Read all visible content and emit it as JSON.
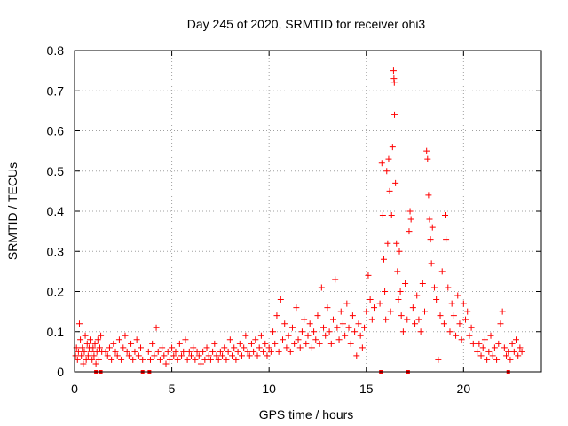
{
  "chart_data": {
    "type": "scatter",
    "title": "Day 245 of 2020, SRMTID for receiver ohi3",
    "xlabel": "GPS time / hours",
    "ylabel": "SRMTID / TECUs",
    "xlim": [
      0,
      24
    ],
    "ylim": [
      0,
      0.8
    ],
    "x_ticks": [
      0,
      5,
      10,
      15,
      20
    ],
    "x_tick_labels": [
      "0",
      "5",
      "10",
      "15",
      "20"
    ],
    "y_ticks": [
      0,
      0.1,
      0.2,
      0.3,
      0.4,
      0.5,
      0.6,
      0.7,
      0.8
    ],
    "y_tick_labels": [
      "0",
      "0.1",
      "0.2",
      "0.3",
      "0.4",
      "0.5",
      "0.6",
      "0.7",
      "0.8"
    ],
    "grid": true,
    "marker": "plus",
    "color": "#ff0000",
    "series": [
      {
        "name": "SRMTID",
        "points": [
          [
            0.05,
            0.04
          ],
          [
            0.1,
            0.06
          ],
          [
            0.15,
            0.03
          ],
          [
            0.2,
            0.05
          ],
          [
            0.25,
            0.12
          ],
          [
            0.3,
            0.08
          ],
          [
            0.35,
            0.04
          ],
          [
            0.4,
            0.06
          ],
          [
            0.45,
            0.02
          ],
          [
            0.5,
            0.05
          ],
          [
            0.55,
            0.09
          ],
          [
            0.6,
            0.03
          ],
          [
            0.65,
            0.07
          ],
          [
            0.7,
            0.04
          ],
          [
            0.75,
            0.06
          ],
          [
            0.8,
            0.08
          ],
          [
            0.85,
            0.05
          ],
          [
            0.9,
            0.03
          ],
          [
            0.95,
            0.06
          ],
          [
            1.0,
            0.04
          ],
          [
            1.05,
            0.07
          ],
          [
            1.1,
            0.02
          ],
          [
            1.15,
            0.05
          ],
          [
            1.2,
            0.08
          ],
          [
            1.25,
            0.03
          ],
          [
            1.3,
            0.06
          ],
          [
            1.35,
            0.09
          ],
          [
            1.4,
            0.05
          ],
          [
            1.6,
            0.05
          ],
          [
            1.7,
            0.04
          ],
          [
            1.8,
            0.06
          ],
          [
            1.9,
            0.03
          ],
          [
            2.0,
            0.07
          ],
          [
            2.1,
            0.05
          ],
          [
            2.2,
            0.04
          ],
          [
            2.3,
            0.08
          ],
          [
            2.4,
            0.03
          ],
          [
            2.5,
            0.06
          ],
          [
            2.6,
            0.09
          ],
          [
            2.7,
            0.05
          ],
          [
            2.8,
            0.04
          ],
          [
            2.9,
            0.07
          ],
          [
            3.0,
            0.03
          ],
          [
            3.1,
            0.05
          ],
          [
            3.2,
            0.08
          ],
          [
            3.3,
            0.04
          ],
          [
            3.4,
            0.06
          ],
          [
            3.5,
            0.03
          ],
          [
            3.8,
            0.05
          ],
          [
            3.9,
            0.03
          ],
          [
            4.0,
            0.07
          ],
          [
            4.1,
            0.04
          ],
          [
            4.2,
            0.11
          ],
          [
            4.3,
            0.05
          ],
          [
            4.4,
            0.03
          ],
          [
            4.5,
            0.06
          ],
          [
            4.6,
            0.04
          ],
          [
            4.7,
            0.02
          ],
          [
            4.8,
            0.05
          ],
          [
            4.9,
            0.03
          ],
          [
            5.0,
            0.06
          ],
          [
            5.1,
            0.04
          ],
          [
            5.2,
            0.05
          ],
          [
            5.3,
            0.03
          ],
          [
            5.4,
            0.07
          ],
          [
            5.5,
            0.04
          ],
          [
            5.6,
            0.05
          ],
          [
            5.7,
            0.08
          ],
          [
            5.8,
            0.03
          ],
          [
            5.9,
            0.05
          ],
          [
            6.0,
            0.04
          ],
          [
            6.1,
            0.06
          ],
          [
            6.2,
            0.03
          ],
          [
            6.3,
            0.05
          ],
          [
            6.4,
            0.04
          ],
          [
            6.5,
            0.02
          ],
          [
            6.6,
            0.05
          ],
          [
            6.7,
            0.03
          ],
          [
            6.8,
            0.06
          ],
          [
            6.9,
            0.04
          ],
          [
            7.0,
            0.03
          ],
          [
            7.1,
            0.05
          ],
          [
            7.2,
            0.07
          ],
          [
            7.3,
            0.04
          ],
          [
            7.4,
            0.03
          ],
          [
            7.5,
            0.05
          ],
          [
            7.6,
            0.04
          ],
          [
            7.7,
            0.06
          ],
          [
            7.8,
            0.03
          ],
          [
            7.9,
            0.05
          ],
          [
            8.0,
            0.08
          ],
          [
            8.1,
            0.04
          ],
          [
            8.2,
            0.06
          ],
          [
            8.3,
            0.03
          ],
          [
            8.4,
            0.05
          ],
          [
            8.5,
            0.07
          ],
          [
            8.6,
            0.04
          ],
          [
            8.7,
            0.06
          ],
          [
            8.8,
            0.09
          ],
          [
            8.9,
            0.05
          ],
          [
            9.0,
            0.04
          ],
          [
            9.1,
            0.07
          ],
          [
            9.2,
            0.05
          ],
          [
            9.3,
            0.08
          ],
          [
            9.4,
            0.04
          ],
          [
            9.5,
            0.06
          ],
          [
            9.6,
            0.09
          ],
          [
            9.7,
            0.05
          ],
          [
            9.8,
            0.07
          ],
          [
            9.9,
            0.04
          ],
          [
            10.0,
            0.06
          ],
          [
            10.1,
            0.05
          ],
          [
            10.2,
            0.1
          ],
          [
            10.3,
            0.07
          ],
          [
            10.4,
            0.14
          ],
          [
            10.5,
            0.05
          ],
          [
            10.6,
            0.18
          ],
          [
            10.7,
            0.08
          ],
          [
            10.8,
            0.12
          ],
          [
            10.9,
            0.06
          ],
          [
            11.0,
            0.09
          ],
          [
            11.1,
            0.05
          ],
          [
            11.2,
            0.11
          ],
          [
            11.3,
            0.07
          ],
          [
            11.4,
            0.16
          ],
          [
            11.5,
            0.08
          ],
          [
            11.6,
            0.06
          ],
          [
            11.7,
            0.1
          ],
          [
            11.8,
            0.13
          ],
          [
            11.9,
            0.07
          ],
          [
            12.0,
            0.09
          ],
          [
            12.1,
            0.12
          ],
          [
            12.2,
            0.06
          ],
          [
            12.3,
            0.1
          ],
          [
            12.4,
            0.08
          ],
          [
            12.5,
            0.14
          ],
          [
            12.6,
            0.07
          ],
          [
            12.7,
            0.21
          ],
          [
            12.8,
            0.11
          ],
          [
            12.9,
            0.09
          ],
          [
            13.0,
            0.16
          ],
          [
            13.1,
            0.1
          ],
          [
            13.2,
            0.07
          ],
          [
            13.3,
            0.13
          ],
          [
            13.4,
            0.23
          ],
          [
            13.5,
            0.11
          ],
          [
            13.6,
            0.08
          ],
          [
            13.7,
            0.15
          ],
          [
            13.8,
            0.12
          ],
          [
            13.9,
            0.09
          ],
          [
            14.0,
            0.17
          ],
          [
            14.1,
            0.11
          ],
          [
            14.2,
            0.07
          ],
          [
            14.3,
            0.14
          ],
          [
            14.4,
            0.1
          ],
          [
            14.5,
            0.04
          ],
          [
            14.6,
            0.12
          ],
          [
            14.7,
            0.09
          ],
          [
            14.8,
            0.06
          ],
          [
            14.9,
            0.11
          ],
          [
            15.0,
            0.15
          ],
          [
            15.1,
            0.24
          ],
          [
            15.2,
            0.18
          ],
          [
            15.3,
            0.13
          ],
          [
            15.4,
            0.16
          ],
          [
            15.7,
            0.17
          ],
          [
            15.8,
            0.52
          ],
          [
            15.85,
            0.39
          ],
          [
            15.9,
            0.28
          ],
          [
            15.95,
            0.2
          ],
          [
            16.0,
            0.13
          ],
          [
            16.05,
            0.5
          ],
          [
            16.1,
            0.32
          ],
          [
            16.15,
            0.53
          ],
          [
            16.2,
            0.45
          ],
          [
            16.25,
            0.15
          ],
          [
            16.3,
            0.39
          ],
          [
            16.35,
            0.56
          ],
          [
            16.4,
            0.75
          ],
          [
            16.42,
            0.73
          ],
          [
            16.44,
            0.72
          ],
          [
            16.45,
            0.64
          ],
          [
            16.5,
            0.47
          ],
          [
            16.55,
            0.32
          ],
          [
            16.6,
            0.25
          ],
          [
            16.65,
            0.18
          ],
          [
            16.7,
            0.3
          ],
          [
            16.75,
            0.2
          ],
          [
            16.8,
            0.14
          ],
          [
            16.9,
            0.1
          ],
          [
            17.0,
            0.22
          ],
          [
            17.1,
            0.13
          ],
          [
            17.2,
            0.35
          ],
          [
            17.25,
            0.4
          ],
          [
            17.3,
            0.38
          ],
          [
            17.4,
            0.16
          ],
          [
            17.5,
            0.12
          ],
          [
            17.6,
            0.19
          ],
          [
            17.7,
            0.13
          ],
          [
            17.8,
            0.1
          ],
          [
            17.9,
            0.22
          ],
          [
            18.0,
            0.15
          ],
          [
            18.1,
            0.55
          ],
          [
            18.15,
            0.53
          ],
          [
            18.2,
            0.44
          ],
          [
            18.25,
            0.38
          ],
          [
            18.3,
            0.33
          ],
          [
            18.35,
            0.27
          ],
          [
            18.4,
            0.36
          ],
          [
            18.5,
            0.21
          ],
          [
            18.6,
            0.18
          ],
          [
            18.7,
            0.03
          ],
          [
            18.8,
            0.14
          ],
          [
            18.9,
            0.25
          ],
          [
            19.0,
            0.12
          ],
          [
            19.05,
            0.39
          ],
          [
            19.1,
            0.33
          ],
          [
            19.2,
            0.21
          ],
          [
            19.3,
            0.1
          ],
          [
            19.4,
            0.17
          ],
          [
            19.5,
            0.14
          ],
          [
            19.6,
            0.09
          ],
          [
            19.7,
            0.19
          ],
          [
            19.8,
            0.12
          ],
          [
            19.9,
            0.08
          ],
          [
            20.0,
            0.17
          ],
          [
            20.1,
            0.13
          ],
          [
            20.2,
            0.15
          ],
          [
            20.3,
            0.09
          ],
          [
            20.4,
            0.11
          ],
          [
            20.5,
            0.07
          ],
          [
            20.7,
            0.05
          ],
          [
            20.8,
            0.07
          ],
          [
            20.9,
            0.04
          ],
          [
            21.0,
            0.06
          ],
          [
            21.1,
            0.08
          ],
          [
            21.2,
            0.03
          ],
          [
            21.3,
            0.05
          ],
          [
            21.4,
            0.09
          ],
          [
            21.5,
            0.04
          ],
          [
            21.6,
            0.06
          ],
          [
            21.7,
            0.03
          ],
          [
            21.8,
            0.07
          ],
          [
            21.9,
            0.12
          ],
          [
            22.0,
            0.15
          ],
          [
            22.1,
            0.06
          ],
          [
            22.2,
            0.04
          ],
          [
            22.3,
            0.05
          ],
          [
            22.4,
            0.03
          ],
          [
            22.5,
            0.07
          ],
          [
            22.6,
            0.05
          ],
          [
            22.7,
            0.08
          ],
          [
            22.8,
            0.04
          ],
          [
            22.9,
            0.06
          ],
          [
            23.0,
            0.05
          ]
        ]
      }
    ],
    "zero_markers_x": [
      1.1,
      1.35,
      3.5,
      3.85,
      15.75,
      17.15,
      22.3
    ]
  }
}
